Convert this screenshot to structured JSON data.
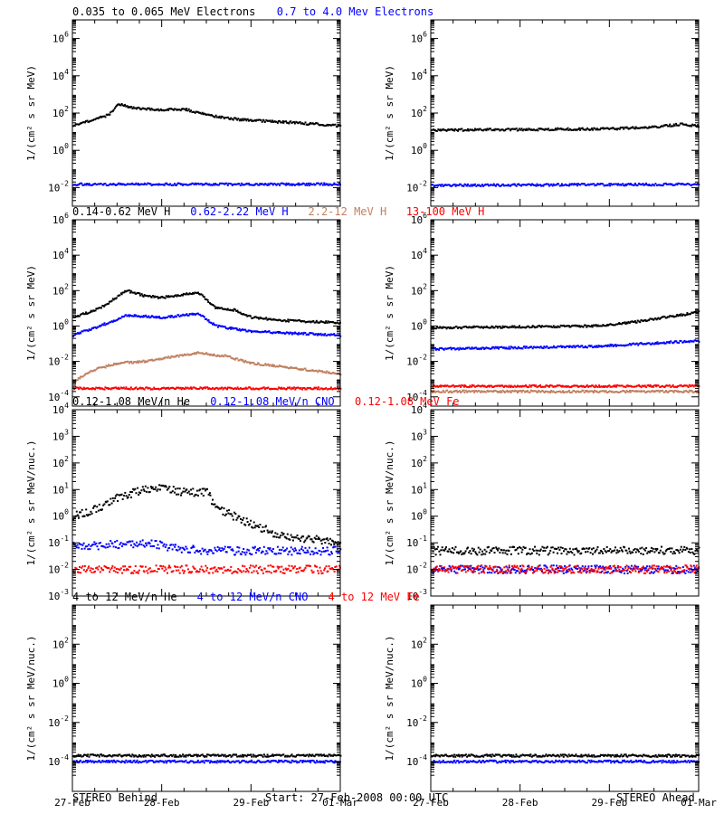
{
  "footer": {
    "left": "STEREO Behind",
    "center": "Start: 27-Feb-2008 00:00 UTC",
    "right": "STEREO Ahead"
  },
  "x_ticks": [
    "27-Feb",
    "28-Feb",
    "29-Feb",
    "01-Mar"
  ],
  "chart_data": [
    {
      "type": "scatter",
      "scale": "log",
      "ylabel": "1/(cm² s sr MeV)",
      "ylim": [
        0.001,
        10000000
      ],
      "ytick_exps": [
        -2,
        0,
        2,
        4,
        6
      ],
      "xlim": [
        0,
        3
      ],
      "titles": [
        {
          "text": "0.035 to 0.065 MeV Electrons",
          "color": "#000000"
        },
        {
          "text": "0.7 to 4.0 Mev Electrons",
          "color": "#0000ff"
        }
      ],
      "behind": [
        {
          "name": "0.035 to 0.065 MeV Electrons",
          "color": "#000000",
          "x": [
            0,
            0.2,
            0.4,
            0.5,
            0.7,
            1.0,
            1.25,
            1.5,
            1.75,
            2.0,
            2.5,
            3.0
          ],
          "y": [
            20,
            40,
            80,
            300,
            180,
            150,
            160,
            80,
            50,
            40,
            30,
            20
          ]
        },
        {
          "name": "0.7 to 4.0 Mev Electrons",
          "color": "#0000ff",
          "x": [
            0,
            1.5,
            3.0
          ],
          "y": [
            0.015,
            0.015,
            0.015
          ]
        }
      ],
      "ahead": [
        {
          "name": "0.035 to 0.065 MeV Electrons",
          "color": "#000000",
          "x": [
            0,
            1.0,
            2.0,
            2.5,
            2.8,
            3.0
          ],
          "y": [
            12,
            13,
            14,
            18,
            25,
            20
          ]
        },
        {
          "name": "0.7 to 4.0 Mev Electrons",
          "color": "#0000ff",
          "x": [
            0,
            1.5,
            3.0
          ],
          "y": [
            0.013,
            0.014,
            0.015
          ]
        }
      ]
    },
    {
      "type": "scatter",
      "scale": "log",
      "ylabel": "1/(cm² s sr MeV)",
      "ylim": [
        3e-05,
        1000000
      ],
      "ytick_exps": [
        -4,
        -2,
        0,
        2,
        4,
        6
      ],
      "xlim": [
        0,
        3
      ],
      "titles": [
        {
          "text": "0.14-0.62 MeV H",
          "color": "#000000"
        },
        {
          "text": "0.62-2.22 MeV H",
          "color": "#0000ff"
        },
        {
          "text": "2.2-12 MeV H",
          "color": "#c08060"
        },
        {
          "text": "13-100 MeV H",
          "color": "#ff0000"
        }
      ],
      "behind": [
        {
          "name": "0.14-0.62 MeV H",
          "color": "#000000",
          "x": [
            0,
            0.3,
            0.6,
            0.8,
            1.0,
            1.4,
            1.6,
            1.8,
            2.0,
            2.4,
            3.0
          ],
          "y": [
            3,
            10,
            100,
            50,
            40,
            80,
            10,
            8,
            3,
            2,
            1.5
          ]
        },
        {
          "name": "0.62-2.22 MeV H",
          "color": "#0000ff",
          "x": [
            0,
            0.3,
            0.6,
            1.0,
            1.4,
            1.6,
            1.8,
            2.0,
            2.4,
            3.0
          ],
          "y": [
            0.3,
            1,
            4,
            3,
            5,
            1,
            0.7,
            0.5,
            0.4,
            0.3
          ]
        },
        {
          "name": "2.2-12 MeV H",
          "color": "#c08060",
          "x": [
            0,
            0.2,
            0.5,
            0.8,
            1.0,
            1.4,
            1.7,
            2.0,
            2.5,
            3.0
          ],
          "y": [
            0.0007,
            0.003,
            0.008,
            0.01,
            0.015,
            0.03,
            0.02,
            0.008,
            0.004,
            0.002
          ]
        },
        {
          "name": "13-100 MeV H",
          "color": "#ff0000",
          "x": [
            0,
            1.5,
            3.0
          ],
          "y": [
            0.0003,
            0.0003,
            0.0003
          ]
        }
      ],
      "ahead": [
        {
          "name": "0.14-0.62 MeV H",
          "color": "#000000",
          "x": [
            0,
            1.0,
            1.8,
            2.2,
            2.6,
            3.0
          ],
          "y": [
            0.8,
            0.9,
            1.0,
            1.5,
            3,
            6
          ]
        },
        {
          "name": "0.62-2.22 MeV H",
          "color": "#0000ff",
          "x": [
            0,
            1.0,
            1.8,
            2.4,
            3.0
          ],
          "y": [
            0.05,
            0.06,
            0.07,
            0.1,
            0.15
          ]
        },
        {
          "name": "2.2-12 MeV H",
          "color": "#c08060",
          "x": [
            0,
            3.0
          ],
          "y": [
            0.0002,
            0.0002
          ]
        },
        {
          "name": "13-100 MeV H",
          "color": "#ff0000",
          "x": [
            0,
            1.5,
            3.0
          ],
          "y": [
            0.0004,
            0.0004,
            0.0004
          ]
        }
      ]
    },
    {
      "type": "scatter",
      "scale": "log",
      "ylabel": "1/(cm² s sr MeV/nuc.)",
      "ylim": [
        0.001,
        10000
      ],
      "ytick_exps": [
        -3,
        -2,
        -1,
        0,
        1,
        2,
        3,
        4
      ],
      "xlim": [
        0,
        3
      ],
      "titles": [
        {
          "text": "0.12-1.08 MeV/n He",
          "color": "#000000"
        },
        {
          "text": "0.12-1.08 MeV/n CNO",
          "color": "#0000ff"
        },
        {
          "text": "0.12-1.08 MeV Fe",
          "color": "#ff0000"
        }
      ],
      "behind": [
        {
          "name": "0.12-1.08 MeV/n He",
          "color": "#000000",
          "x": [
            0,
            0.3,
            0.5,
            0.8,
            1.0,
            1.2,
            1.5,
            1.6,
            1.8,
            2.0,
            2.3,
            3.0
          ],
          "y": [
            1,
            2,
            5,
            10,
            12,
            8,
            8,
            2,
            1,
            0.5,
            0.2,
            0.1
          ]
        },
        {
          "name": "0.12-1.08 MeV/n CNO",
          "color": "#0000ff",
          "x": [
            0.3,
            0.8,
            1.2,
            1.6
          ],
          "y": [
            0.08,
            0.1,
            0.06,
            0.05
          ]
        },
        {
          "name": "0.12-1.08 MeV Fe",
          "color": "#ff0000",
          "x": [
            0,
            1.5,
            3.0
          ],
          "y": [
            0.01,
            0.01,
            0.01
          ]
        }
      ],
      "ahead": [
        {
          "name": "0.12-1.08 MeV/n He",
          "color": "#000000",
          "x": [
            0,
            1.5,
            3.0
          ],
          "y": [
            0.05,
            0.05,
            0.05
          ]
        },
        {
          "name": "0.12-1.08 MeV/n CNO",
          "color": "#0000ff",
          "x": [
            0,
            1.5,
            3.0
          ],
          "y": [
            0.01,
            0.01,
            0.01
          ]
        },
        {
          "name": "0.12-1.08 MeV Fe",
          "color": "#ff0000",
          "x": [
            0,
            1.5,
            3.0
          ],
          "y": [
            0.01,
            0.01,
            0.01
          ]
        }
      ]
    },
    {
      "type": "scatter",
      "scale": "log",
      "ylabel": "1/(cm² s sr MeV/nuc.)",
      "ylim": [
        3e-06,
        10000
      ],
      "ytick_exps": [
        -4,
        -2,
        0,
        2
      ],
      "xlim": [
        0,
        3
      ],
      "titles": [
        {
          "text": "4 to 12 MeV/n He",
          "color": "#000000"
        },
        {
          "text": "4 to 12 MeV/n CNO",
          "color": "#0000ff"
        },
        {
          "text": "4 to 12 MeV Fe",
          "color": "#ff0000"
        }
      ],
      "behind": [
        {
          "name": "4 to 12 MeV/n He",
          "color": "#000000",
          "x": [
            0.6,
            0.8,
            1.0,
            1.2,
            1.4
          ],
          "y": [
            0.0002,
            0.0002,
            0.0002,
            0.0002,
            0.0002
          ]
        },
        {
          "name": "4 to 12 MeV/n CNO",
          "color": "#0000ff",
          "x": [
            0,
            1.5,
            3.0
          ],
          "y": [
            0.0001,
            0.0001,
            0.0001
          ]
        }
      ],
      "ahead": [
        {
          "name": "4 to 12 MeV/n He",
          "color": "#000000",
          "x": [
            0.2,
            1.0,
            2.0
          ],
          "y": [
            0.0002,
            0.0002,
            0.0002
          ]
        },
        {
          "name": "4 to 12 MeV/n CNO",
          "color": "#0000ff",
          "x": [
            0,
            1.5,
            3.0
          ],
          "y": [
            0.0001,
            0.0001,
            0.0001
          ]
        }
      ]
    }
  ]
}
